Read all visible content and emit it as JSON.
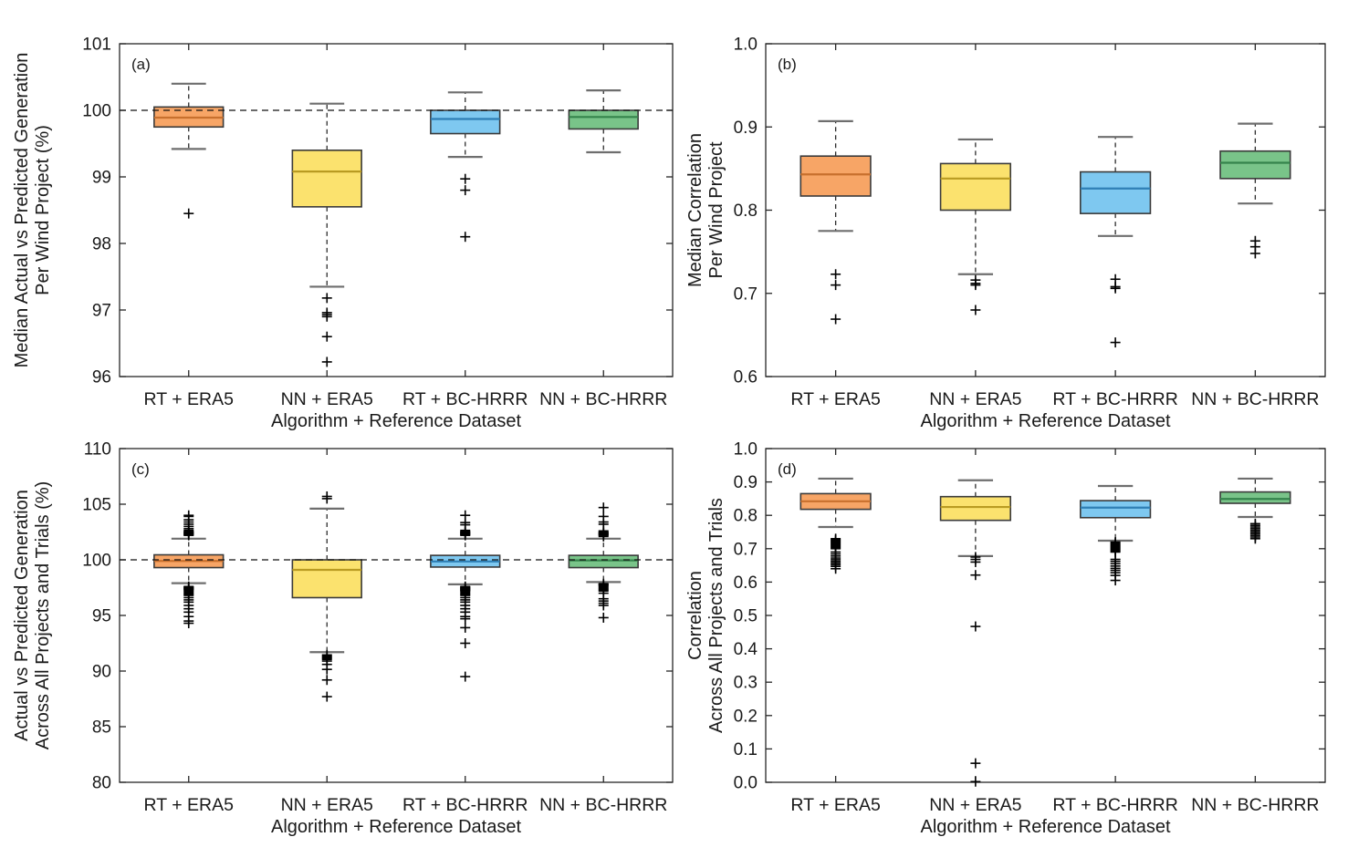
{
  "palette": {
    "orange": {
      "fill": "#F7A566",
      "median": "#C8702E"
    },
    "yellow": {
      "fill": "#FBE26E",
      "median": "#B99B22"
    },
    "blue": {
      "fill": "#7EC8F0",
      "median": "#2F7FB5"
    },
    "green": {
      "fill": "#79C489",
      "median": "#35834C"
    }
  },
  "style_colors": {
    "axis": "#262626",
    "box_edge": "#3A3A3A",
    "whisker": "#2B2B2B",
    "cap": "#6E6E6E",
    "outlier": "#000000",
    "ref_line": "#111111"
  },
  "chart_data": [
    {
      "panel": "(a)",
      "type": "box",
      "ylabel_lines": [
        "Median Actual vs Predicted Generation",
        "Per Wind Project (%)"
      ],
      "xlabel": "Algorithm + Reference Dataset",
      "categories": [
        "RT + ERA5",
        "NN + ERA5",
        "RT + BC-HRRR",
        "NN + BC-HRRR"
      ],
      "ylim": [
        96,
        101
      ],
      "yticks": [
        96,
        97,
        98,
        99,
        100,
        101
      ],
      "ytick_labels": [
        "96",
        "97",
        "98",
        "99",
        "100",
        "101"
      ],
      "ref_line": 100,
      "grid": false,
      "series": [
        {
          "name": "RT + ERA5",
          "color": "orange",
          "q1": 99.75,
          "median": 99.89,
          "q3": 100.05,
          "whisker_low": 99.42,
          "whisker_high": 100.4,
          "outliers": [
            98.45
          ]
        },
        {
          "name": "NN + ERA5",
          "color": "yellow",
          "q1": 98.55,
          "median": 99.08,
          "q3": 99.4,
          "whisker_low": 97.35,
          "whisker_high": 100.1,
          "outliers": [
            97.18,
            96.96,
            96.93,
            96.9,
            96.6,
            96.22
          ]
        },
        {
          "name": "RT + BC-HRRR",
          "color": "blue",
          "q1": 99.65,
          "median": 99.87,
          "q3": 100.0,
          "whisker_low": 99.3,
          "whisker_high": 100.27,
          "outliers": [
            98.97,
            98.8,
            98.1
          ]
        },
        {
          "name": "NN + BC-HRRR",
          "color": "green",
          "q1": 99.72,
          "median": 99.9,
          "q3": 100.0,
          "whisker_low": 99.37,
          "whisker_high": 100.3,
          "outliers": []
        }
      ]
    },
    {
      "panel": "(b)",
      "type": "box",
      "ylabel_lines": [
        "Median Correlation",
        "Per Wind Project"
      ],
      "xlabel": "Algorithm + Reference Dataset",
      "categories": [
        "RT + ERA5",
        "NN + ERA5",
        "RT + BC-HRRR",
        "NN + BC-HRRR"
      ],
      "ylim": [
        0.6,
        1.0
      ],
      "yticks": [
        0.6,
        0.7,
        0.8,
        0.9,
        1.0
      ],
      "ytick_labels": [
        "0.6",
        "0.7",
        "0.8",
        "0.9",
        "1.0"
      ],
      "ref_line": null,
      "grid": false,
      "series": [
        {
          "name": "RT + ERA5",
          "color": "orange",
          "q1": 0.817,
          "median": 0.843,
          "q3": 0.865,
          "whisker_low": 0.775,
          "whisker_high": 0.907,
          "outliers": [
            0.723,
            0.71,
            0.669
          ]
        },
        {
          "name": "NN + ERA5",
          "color": "yellow",
          "q1": 0.8,
          "median": 0.838,
          "q3": 0.856,
          "whisker_low": 0.723,
          "whisker_high": 0.885,
          "outliers": [
            0.716,
            0.712,
            0.71,
            0.68
          ]
        },
        {
          "name": "RT + BC-HRRR",
          "color": "blue",
          "q1": 0.796,
          "median": 0.826,
          "q3": 0.846,
          "whisker_low": 0.769,
          "whisker_high": 0.888,
          "outliers": [
            0.717,
            0.708,
            0.706,
            0.641
          ]
        },
        {
          "name": "NN + BC-HRRR",
          "color": "green",
          "q1": 0.838,
          "median": 0.857,
          "q3": 0.871,
          "whisker_low": 0.808,
          "whisker_high": 0.904,
          "outliers": [
            0.763,
            0.756,
            0.748
          ]
        }
      ]
    },
    {
      "panel": "(c)",
      "type": "box",
      "ylabel_lines": [
        "Actual vs Predicted Generation",
        "Across All Projects and Trials (%)"
      ],
      "xlabel": "Algorithm + Reference Dataset",
      "categories": [
        "RT + ERA5",
        "NN + ERA5",
        "RT + BC-HRRR",
        "NN + BC-HRRR"
      ],
      "ylim": [
        80,
        110
      ],
      "yticks": [
        80,
        85,
        90,
        95,
        100,
        105,
        110
      ],
      "ytick_labels": [
        "80",
        "85",
        "90",
        "95",
        "100",
        "105",
        "110"
      ],
      "ref_line": 100,
      "grid": false,
      "series": [
        {
          "name": "RT + ERA5",
          "color": "orange",
          "q1": 99.3,
          "median": 99.9,
          "q3": 100.45,
          "whisker_low": 97.9,
          "whisker_high": 101.9,
          "outliers": [
            104.0,
            103.9,
            103.6,
            103.4,
            103.2,
            103.0,
            102.8,
            102.65,
            102.55,
            102.5,
            102.45,
            102.4,
            102.35,
            102.3,
            102.25,
            102.2,
            97.6,
            97.55,
            97.5,
            97.45,
            97.4,
            97.35,
            97.3,
            97.2,
            97.1,
            97.0,
            96.9,
            96.8,
            96.6,
            96.4,
            96.2,
            95.9,
            95.6,
            95.3,
            94.9,
            94.5,
            94.3
          ]
        },
        {
          "name": "NN + ERA5",
          "color": "yellow",
          "q1": 96.6,
          "median": 99.1,
          "q3": 100.0,
          "whisker_low": 91.7,
          "whisker_high": 104.6,
          "outliers": [
            105.7,
            105.5,
            91.45,
            91.35,
            91.25,
            91.15,
            91.05,
            90.9,
            90.6,
            90.15,
            89.2,
            87.7
          ]
        },
        {
          "name": "RT + BC-HRRR",
          "color": "blue",
          "q1": 99.35,
          "median": 99.85,
          "q3": 100.4,
          "whisker_low": 97.8,
          "whisker_high": 101.9,
          "outliers": [
            104.0,
            103.35,
            103.15,
            102.65,
            102.55,
            102.5,
            102.45,
            102.4,
            102.35,
            102.3,
            102.25,
            102.2,
            97.6,
            97.55,
            97.5,
            97.45,
            97.4,
            97.35,
            97.3,
            97.25,
            97.2,
            97.1,
            97.0,
            96.9,
            96.8,
            96.6,
            96.4,
            96.2,
            95.9,
            95.6,
            95.3,
            94.9,
            94.7,
            93.9,
            92.5,
            89.5
          ]
        },
        {
          "name": "NN + BC-HRRR",
          "color": "green",
          "q1": 99.3,
          "median": 99.95,
          "q3": 100.4,
          "whisker_low": 98.0,
          "whisker_high": 101.9,
          "outliers": [
            104.7,
            103.9,
            103.4,
            103.2,
            102.6,
            102.5,
            102.45,
            102.4,
            102.35,
            102.3,
            102.25,
            102.2,
            102.1,
            97.85,
            97.8,
            97.75,
            97.7,
            97.6,
            97.5,
            97.4,
            97.3,
            97.2,
            97.0,
            96.5,
            96.3,
            96.1,
            95.9,
            94.8
          ]
        }
      ]
    },
    {
      "panel": "(d)",
      "type": "box",
      "ylabel_lines": [
        "Correlation",
        "Across All Projects and Trials"
      ],
      "xlabel": "Algorithm + Reference Dataset",
      "categories": [
        "RT + ERA5",
        "NN + ERA5",
        "RT + BC-HRRR",
        "NN + BC-HRRR"
      ],
      "ylim": [
        0.0,
        1.0
      ],
      "yticks": [
        0.0,
        0.1,
        0.2,
        0.3,
        0.4,
        0.5,
        0.6,
        0.7,
        0.8,
        0.9,
        1.0
      ],
      "ytick_labels": [
        "0.0",
        "0.1",
        "0.2",
        "0.3",
        "0.4",
        "0.5",
        "0.6",
        "0.7",
        "0.8",
        "0.9",
        "1.0"
      ],
      "ref_line": null,
      "grid": false,
      "series": [
        {
          "name": "RT + ERA5",
          "color": "orange",
          "q1": 0.818,
          "median": 0.842,
          "q3": 0.865,
          "whisker_low": 0.765,
          "whisker_high": 0.91,
          "outliers": [
            0.73,
            0.727,
            0.724,
            0.721,
            0.718,
            0.715,
            0.712,
            0.709,
            0.706,
            0.703,
            0.7,
            0.69,
            0.684,
            0.678,
            0.672,
            0.667,
            0.662,
            0.657,
            0.652,
            0.647,
            0.64
          ]
        },
        {
          "name": "NN + ERA5",
          "color": "yellow",
          "q1": 0.785,
          "median": 0.825,
          "q3": 0.856,
          "whisker_low": 0.678,
          "whisker_high": 0.905,
          "outliers": [
            0.675,
            0.668,
            0.66,
            0.621,
            0.467,
            0.057,
            0.002
          ]
        },
        {
          "name": "RT + BC-HRRR",
          "color": "blue",
          "q1": 0.793,
          "median": 0.823,
          "q3": 0.844,
          "whisker_low": 0.724,
          "whisker_high": 0.888,
          "outliers": [
            0.72,
            0.717,
            0.714,
            0.711,
            0.708,
            0.705,
            0.702,
            0.699,
            0.696,
            0.693,
            0.69,
            0.668,
            0.662,
            0.655,
            0.648,
            0.641,
            0.635,
            0.628,
            0.62,
            0.605
          ]
        },
        {
          "name": "NN + BC-HRRR",
          "color": "green",
          "q1": 0.836,
          "median": 0.849,
          "q3": 0.87,
          "whisker_low": 0.795,
          "whisker_high": 0.91,
          "outliers": [
            0.775,
            0.77,
            0.765,
            0.76,
            0.755,
            0.75,
            0.745,
            0.74,
            0.735,
            0.73
          ]
        }
      ]
    }
  ]
}
